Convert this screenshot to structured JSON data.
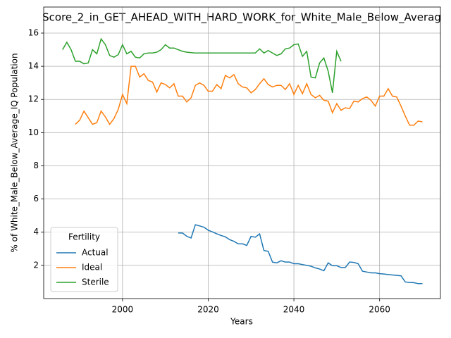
{
  "chart_data": {
    "type": "line",
    "title": "Score_2_in_GET_AHEAD_WITH_HARD_WORK_for_White_Male_Below_Averag",
    "x_label": "Years",
    "y_label": "% of White_Male_Below_Average_IQ Population",
    "x": [
      1986,
      1987,
      1988,
      1989,
      1990,
      1991,
      1992,
      1993,
      1994,
      1995,
      1996,
      1997,
      1998,
      1999,
      2000,
      2001,
      2002,
      2003,
      2004,
      2005,
      2006,
      2007,
      2008,
      2009,
      2010,
      2011,
      2012,
      2013,
      2014,
      2015,
      2016,
      2017,
      2018,
      2019,
      2020,
      2021,
      2022,
      2023,
      2024,
      2025,
      2026,
      2027,
      2028,
      2029,
      2030,
      2031,
      2032,
      2033,
      2034,
      2035,
      2036,
      2037,
      2038,
      2039,
      2040,
      2041,
      2042,
      2043,
      2044,
      2045,
      2046,
      2047,
      2048,
      2049,
      2050,
      2051,
      2052,
      2053,
      2054,
      2055,
      2056,
      2057,
      2058,
      2059,
      2060,
      2061,
      2062,
      2063,
      2064,
      2065,
      2066,
      2067,
      2068,
      2069,
      2070
    ],
    "series": [
      {
        "name": "Actual",
        "color": "#1f77b4",
        "values": [
          null,
          null,
          null,
          null,
          null,
          null,
          null,
          null,
          null,
          null,
          null,
          null,
          null,
          null,
          null,
          null,
          null,
          null,
          null,
          null,
          null,
          null,
          null,
          null,
          null,
          null,
          null,
          3.95,
          3.95,
          3.75,
          3.65,
          4.45,
          4.38,
          4.3,
          4.12,
          4.02,
          3.9,
          3.8,
          3.72,
          3.55,
          3.45,
          3.3,
          3.3,
          3.2,
          3.75,
          3.7,
          3.9,
          2.9,
          2.85,
          2.2,
          2.15,
          2.28,
          2.2,
          2.2,
          2.1,
          2.1,
          2.05,
          2.0,
          1.95,
          1.85,
          1.78,
          1.68,
          2.15,
          1.98,
          1.98,
          1.87,
          1.87,
          2.2,
          2.18,
          2.1,
          1.65,
          1.6,
          1.55,
          1.55,
          1.5,
          1.48,
          1.45,
          1.42,
          1.4,
          1.37,
          1.0,
          0.97,
          0.96,
          0.9,
          0.9
        ]
      },
      {
        "name": "Ideal",
        "color": "#ff7f0e",
        "values": [
          null,
          null,
          null,
          10.5,
          10.75,
          11.3,
          10.9,
          10.5,
          10.6,
          11.3,
          10.95,
          10.5,
          10.85,
          11.4,
          12.3,
          11.75,
          14.0,
          14.0,
          13.35,
          13.55,
          13.15,
          13.05,
          12.45,
          13.0,
          12.9,
          12.7,
          12.95,
          12.2,
          12.2,
          11.85,
          12.1,
          12.85,
          13.0,
          12.85,
          12.5,
          12.5,
          12.9,
          12.65,
          13.45,
          13.3,
          13.5,
          12.95,
          12.75,
          12.7,
          12.4,
          12.6,
          12.95,
          13.25,
          12.9,
          12.75,
          12.85,
          12.85,
          12.6,
          12.95,
          12.3,
          12.85,
          12.35,
          12.95,
          12.3,
          12.1,
          12.25,
          11.95,
          11.9,
          11.2,
          11.75,
          11.35,
          11.5,
          11.45,
          11.9,
          11.85,
          12.05,
          12.15,
          11.95,
          11.6,
          12.2,
          12.2,
          12.65,
          12.2,
          12.15,
          11.6,
          11.0,
          10.45,
          10.45,
          10.7,
          10.65
        ]
      },
      {
        "name": "Sterile",
        "color": "#2ca02c",
        "values": [
          15.0,
          15.45,
          15.0,
          14.3,
          14.3,
          14.15,
          14.2,
          15.0,
          14.75,
          15.65,
          15.3,
          14.65,
          14.55,
          14.7,
          15.3,
          14.75,
          14.9,
          14.55,
          14.5,
          14.75,
          14.8,
          14.8,
          14.85,
          15.0,
          15.3,
          15.1,
          15.1,
          15.0,
          14.9,
          14.85,
          14.82,
          14.8,
          14.8,
          14.8,
          14.8,
          14.8,
          14.8,
          14.8,
          14.8,
          14.8,
          14.8,
          14.8,
          14.8,
          14.8,
          14.8,
          14.8,
          15.05,
          14.8,
          14.95,
          14.8,
          14.65,
          14.75,
          15.05,
          15.1,
          15.3,
          15.35,
          14.6,
          14.9,
          13.35,
          13.3,
          14.2,
          14.5,
          13.7,
          12.4,
          14.9,
          14.3,
          null,
          null,
          null,
          null,
          null,
          null,
          null,
          null,
          null,
          null,
          null,
          null,
          null,
          null,
          null,
          null,
          null,
          null,
          null
        ]
      }
    ],
    "xlim": [
      1981.6,
      2074.2
    ],
    "xticks": [
      2000,
      2020,
      2040,
      2060
    ],
    "ylim": [
      0,
      17.57
    ],
    "yticks": [
      2,
      4,
      6,
      8,
      10,
      12,
      14,
      16
    ],
    "grid": true,
    "legend_title": "Fertility",
    "legend_position": "lower-left"
  }
}
